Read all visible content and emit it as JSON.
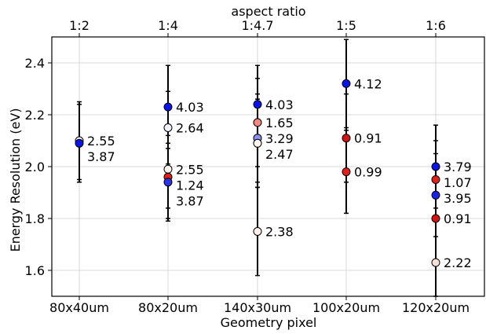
{
  "chart_data": {
    "type": "scatter",
    "xlabel": "Geometry pixel",
    "ylabel": "Energy Resolution (eV)",
    "top_xlabel": "aspect ratio",
    "categories": [
      "80x40um",
      "80x20um",
      "140x30um",
      "100x20um",
      "120x20um"
    ],
    "top_categories": [
      "1:2",
      "1:4",
      "1:4.7",
      "1:5",
      "1:6"
    ],
    "ylim": [
      1.5,
      2.5
    ],
    "yticks": [
      "1.6",
      "1.8",
      "2.0",
      "2.2",
      "2.4"
    ],
    "grid": true,
    "points": [
      {
        "category": 0,
        "y": 2.1,
        "yerr": 0.15,
        "label": "2.55",
        "color": "#fff5f0"
      },
      {
        "category": 0,
        "y": 2.09,
        "yerr": 0.15,
        "label": "3.87",
        "color": "#0b14e6"
      },
      {
        "category": 1,
        "y": 2.23,
        "yerr": 0.16,
        "label": "4.03",
        "color": "#0b14e6"
      },
      {
        "category": 1,
        "y": 2.15,
        "yerr": 0.14,
        "label": "2.64",
        "color": "#f0f0ff"
      },
      {
        "category": 1,
        "y": 1.99,
        "yerr": 0.15,
        "label": "2.55",
        "color": "#fff5f0"
      },
      {
        "category": 1,
        "y": 1.96,
        "yerr": 0.16,
        "label": "1.24",
        "color": "#e0201b"
      },
      {
        "category": 1,
        "y": 1.94,
        "yerr": 0.15,
        "label": "3.87",
        "color": "#2a33e8"
      },
      {
        "category": 2,
        "y": 2.24,
        "yerr": 0.15,
        "label": "4.03",
        "color": "#0b14e6"
      },
      {
        "category": 2,
        "y": 2.17,
        "yerr": 0.17,
        "label": "1.65",
        "color": "#f08a80"
      },
      {
        "category": 2,
        "y": 2.11,
        "yerr": 0.17,
        "label": "3.29",
        "color": "#8c90f0"
      },
      {
        "category": 2,
        "y": 2.09,
        "yerr": 0.17,
        "label": "2.47",
        "color": "#fff5f0"
      },
      {
        "category": 2,
        "y": 1.75,
        "yerr": 0.17,
        "label": "2.38",
        "color": "#fff0ec"
      },
      {
        "category": 3,
        "y": 2.32,
        "yerr": 0.17,
        "label": "4.12",
        "color": "#0b14e6"
      },
      {
        "category": 3,
        "y": 2.11,
        "yerr": 0.17,
        "label": "0.91",
        "color": "#d21414"
      },
      {
        "category": 3,
        "y": 1.98,
        "yerr": 0.16,
        "label": "0.99",
        "color": "#e0201b"
      },
      {
        "category": 4,
        "y": 2.0,
        "yerr": 0.16,
        "label": "3.79",
        "color": "#0b14e6"
      },
      {
        "category": 4,
        "y": 1.95,
        "yerr": 0.15,
        "label": "1.07",
        "color": "#e0201b"
      },
      {
        "category": 4,
        "y": 1.89,
        "yerr": 0.16,
        "label": "3.95",
        "color": "#1a22e6"
      },
      {
        "category": 4,
        "y": 1.8,
        "yerr": 0.16,
        "label": "0.91",
        "color": "#d21414"
      },
      {
        "category": 4,
        "y": 1.63,
        "yerr": 0.16,
        "label": "2.22",
        "color": "#fce0d8"
      }
    ]
  }
}
